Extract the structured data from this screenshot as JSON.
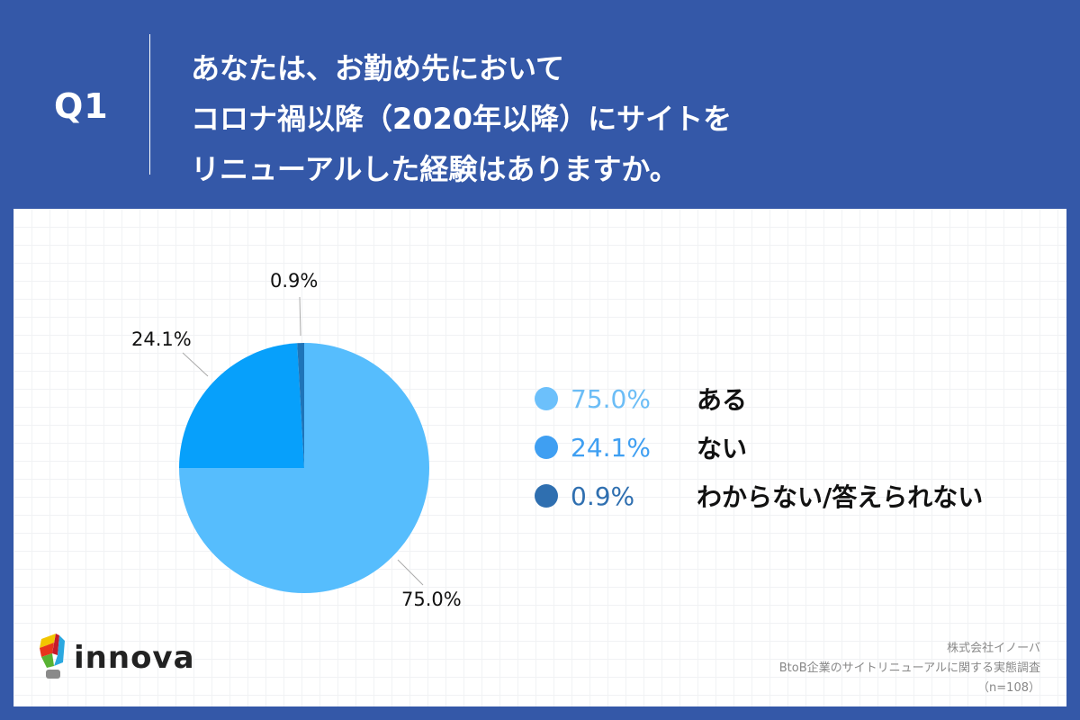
{
  "header": {
    "question_number": "Q1",
    "question_lines": [
      "あなたは、お勤め先において",
      "コロナ禍以降（2020年以降）にサイトを",
      "リニューアルした経験はありますか。"
    ]
  },
  "chart_data": {
    "type": "pie",
    "title": "あなたは、お勤め先においてコロナ禍以降（2020年以降）にサイトをリニューアルした経験はありますか。",
    "categories": [
      "ある",
      "ない",
      "わからない/答えられない"
    ],
    "values": [
      75.0,
      24.1,
      0.9
    ],
    "labels": [
      "75.0%",
      "24.1%",
      "0.9%"
    ],
    "colors": [
      "#56bdfd",
      "#07a0fb",
      "#1f74b8"
    ],
    "legend_position": "right",
    "n": 108
  },
  "legend": [
    {
      "pct": "75.0%",
      "label": "ある",
      "color": "#56bdfd",
      "text_color": "#5ab6f0"
    },
    {
      "pct": "24.1%",
      "label": "ない",
      "color": "#3f9ff2",
      "text_color": "#3f9ff2"
    },
    {
      "pct": "0.9%",
      "label": "わからない/答えられない",
      "color": "#2f6fb0",
      "text_color": "#2f6fb0"
    }
  ],
  "pie_labels": {
    "a": "75.0%",
    "b": "24.1%",
    "c": "0.9%"
  },
  "brand": {
    "name": "innova"
  },
  "source": {
    "company": "株式会社イノーバ",
    "survey": "BtoB企業のサイトリニューアルに関する実態調査",
    "sample": "（n=108）"
  }
}
